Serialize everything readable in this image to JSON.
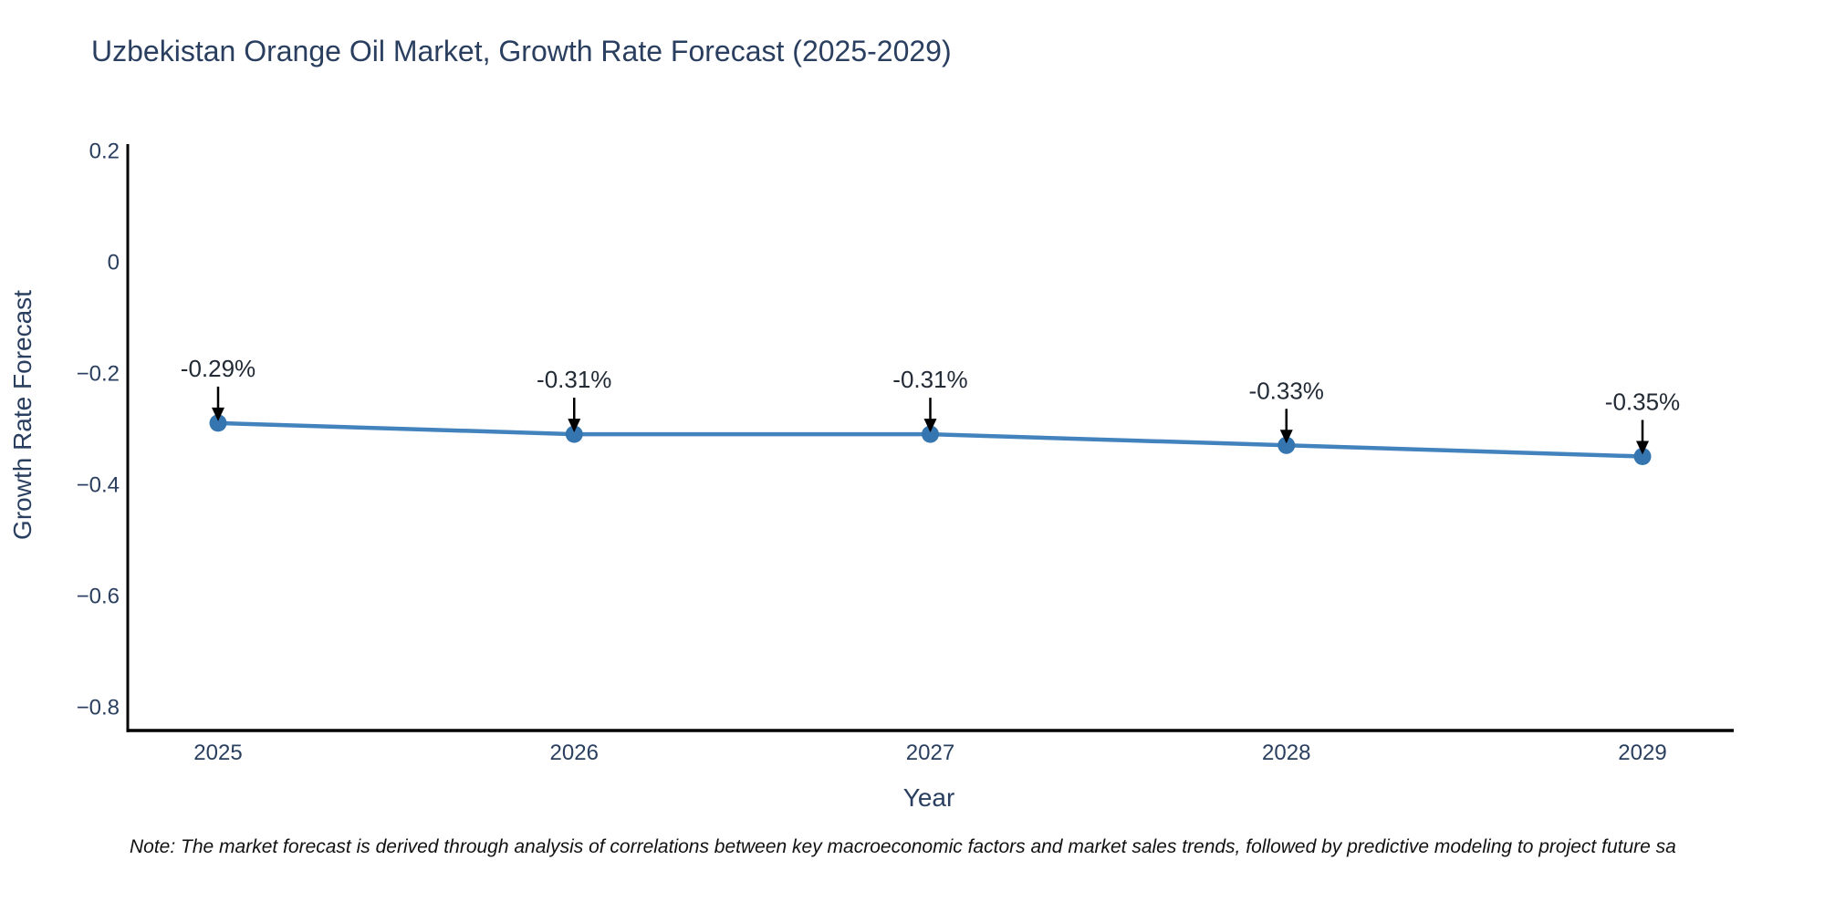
{
  "page": {
    "title": "Uzbekistan Orange Oil Market, Growth Rate Forecast (2025-2029)",
    "footnote": "Note: The market forecast is derived through analysis of correlations between key macroeconomic factors and market sales trends, followed by predictive modeling to project future sa"
  },
  "chart_data": {
    "type": "line",
    "title": "Uzbekistan Orange Oil Market, Growth Rate Forecast (2025-2029)",
    "xlabel": "Year",
    "ylabel": "Growth Rate Forecast",
    "categories": [
      "2025",
      "2026",
      "2027",
      "2028",
      "2029"
    ],
    "series": [
      {
        "name": "Growth Rate Forecast",
        "values": [
          -0.29,
          -0.31,
          -0.31,
          -0.33,
          -0.35
        ],
        "point_labels": [
          "-0.29%",
          "-0.31%",
          "-0.31%",
          "-0.33%",
          "-0.35%"
        ]
      }
    ],
    "ylim": [
      -0.84,
      0.21
    ],
    "yticks": {
      "values": [
        0.2,
        0,
        -0.2,
        -0.4,
        -0.6,
        -0.8
      ],
      "labels": [
        "0.2",
        "0",
        "−0.2",
        "−0.4",
        "−0.6",
        "−0.8"
      ]
    },
    "grid": false,
    "legend_position": "none",
    "annotation_style": "arrow-down-to-point",
    "colors": {
      "line": "#4383bd",
      "marker": "#3576b0",
      "annotation_text": "#222a35",
      "arrow": "#000000",
      "axis_line": "#000000",
      "tick_text": "#2a3f5f",
      "title_text": "#2a3f5f"
    }
  }
}
